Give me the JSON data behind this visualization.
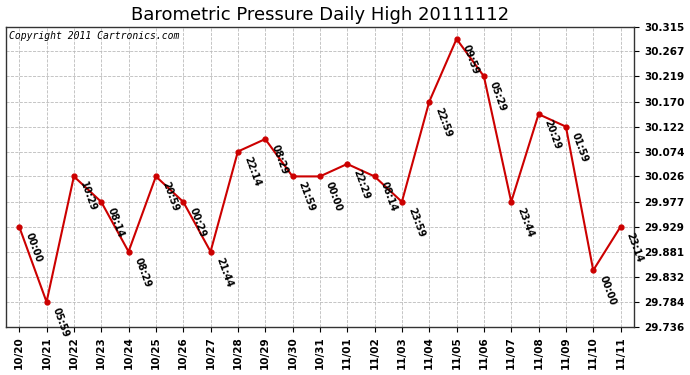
{
  "title": "Barometric Pressure Daily High 20111112",
  "copyright": "Copyright 2011 Cartronics.com",
  "dates": [
    "10/20",
    "10/21",
    "10/22",
    "10/23",
    "10/24",
    "10/25",
    "10/26",
    "10/27",
    "10/28",
    "10/29",
    "10/30",
    "10/31",
    "11/01",
    "11/02",
    "11/03",
    "11/04",
    "11/05",
    "11/06",
    "11/07",
    "11/08",
    "11/09",
    "11/10",
    "11/11"
  ],
  "values": [
    29.929,
    29.784,
    30.026,
    29.977,
    29.881,
    30.026,
    29.977,
    29.881,
    30.074,
    30.098,
    30.026,
    30.026,
    30.05,
    30.026,
    29.977,
    30.17,
    30.291,
    30.219,
    29.977,
    30.146,
    30.122,
    29.845,
    29.929
  ],
  "annotations": [
    "00:00",
    "05:59",
    "10:29",
    "08:14",
    "08:29",
    "20:59",
    "00:29",
    "21:44",
    "22:14",
    "08:29",
    "21:59",
    "00:00",
    "22:29",
    "08:14",
    "23:59",
    "22:59",
    "09:59",
    "05:29",
    "23:44",
    "20:29",
    "01:59",
    "00:00",
    "23:14"
  ],
  "ylim_low": 29.736,
  "ylim_high": 30.315,
  "ytick_values": [
    29.736,
    29.784,
    29.832,
    29.881,
    29.929,
    29.977,
    30.026,
    30.074,
    30.122,
    30.17,
    30.219,
    30.267,
    30.315
  ],
  "line_color": "#cc0000",
  "bg_color": "#ffffff",
  "grid_color": "#bbbbbb",
  "title_fontsize": 13,
  "tick_fontsize": 7.5,
  "ann_fontsize": 7.0,
  "copyright_fontsize": 7.0
}
